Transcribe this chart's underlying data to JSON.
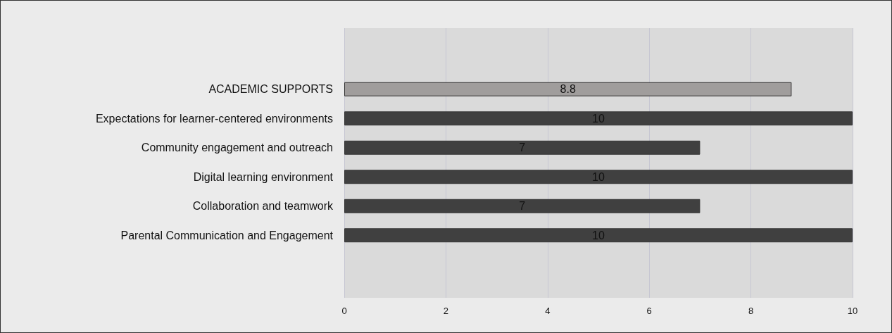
{
  "chart_data": {
    "type": "bar",
    "orientation": "horizontal",
    "categories": [
      "ACADEMIC SUPPORTS",
      "Expectations for learner-centered environments",
      "Community engagement and outreach",
      "Digital learning environment",
      "Collaboration and teamwork",
      "Parental Communication and Engagement"
    ],
    "values": [
      8.8,
      10,
      7,
      10,
      7,
      10
    ],
    "colors": [
      "#a09d9c",
      "#404040",
      "#404040",
      "#404040",
      "#404040",
      "#404040"
    ],
    "xlim": [
      0,
      10
    ],
    "xticks": [
      0,
      2,
      4,
      6,
      8,
      10
    ],
    "grid": "x",
    "data_labels": true
  }
}
